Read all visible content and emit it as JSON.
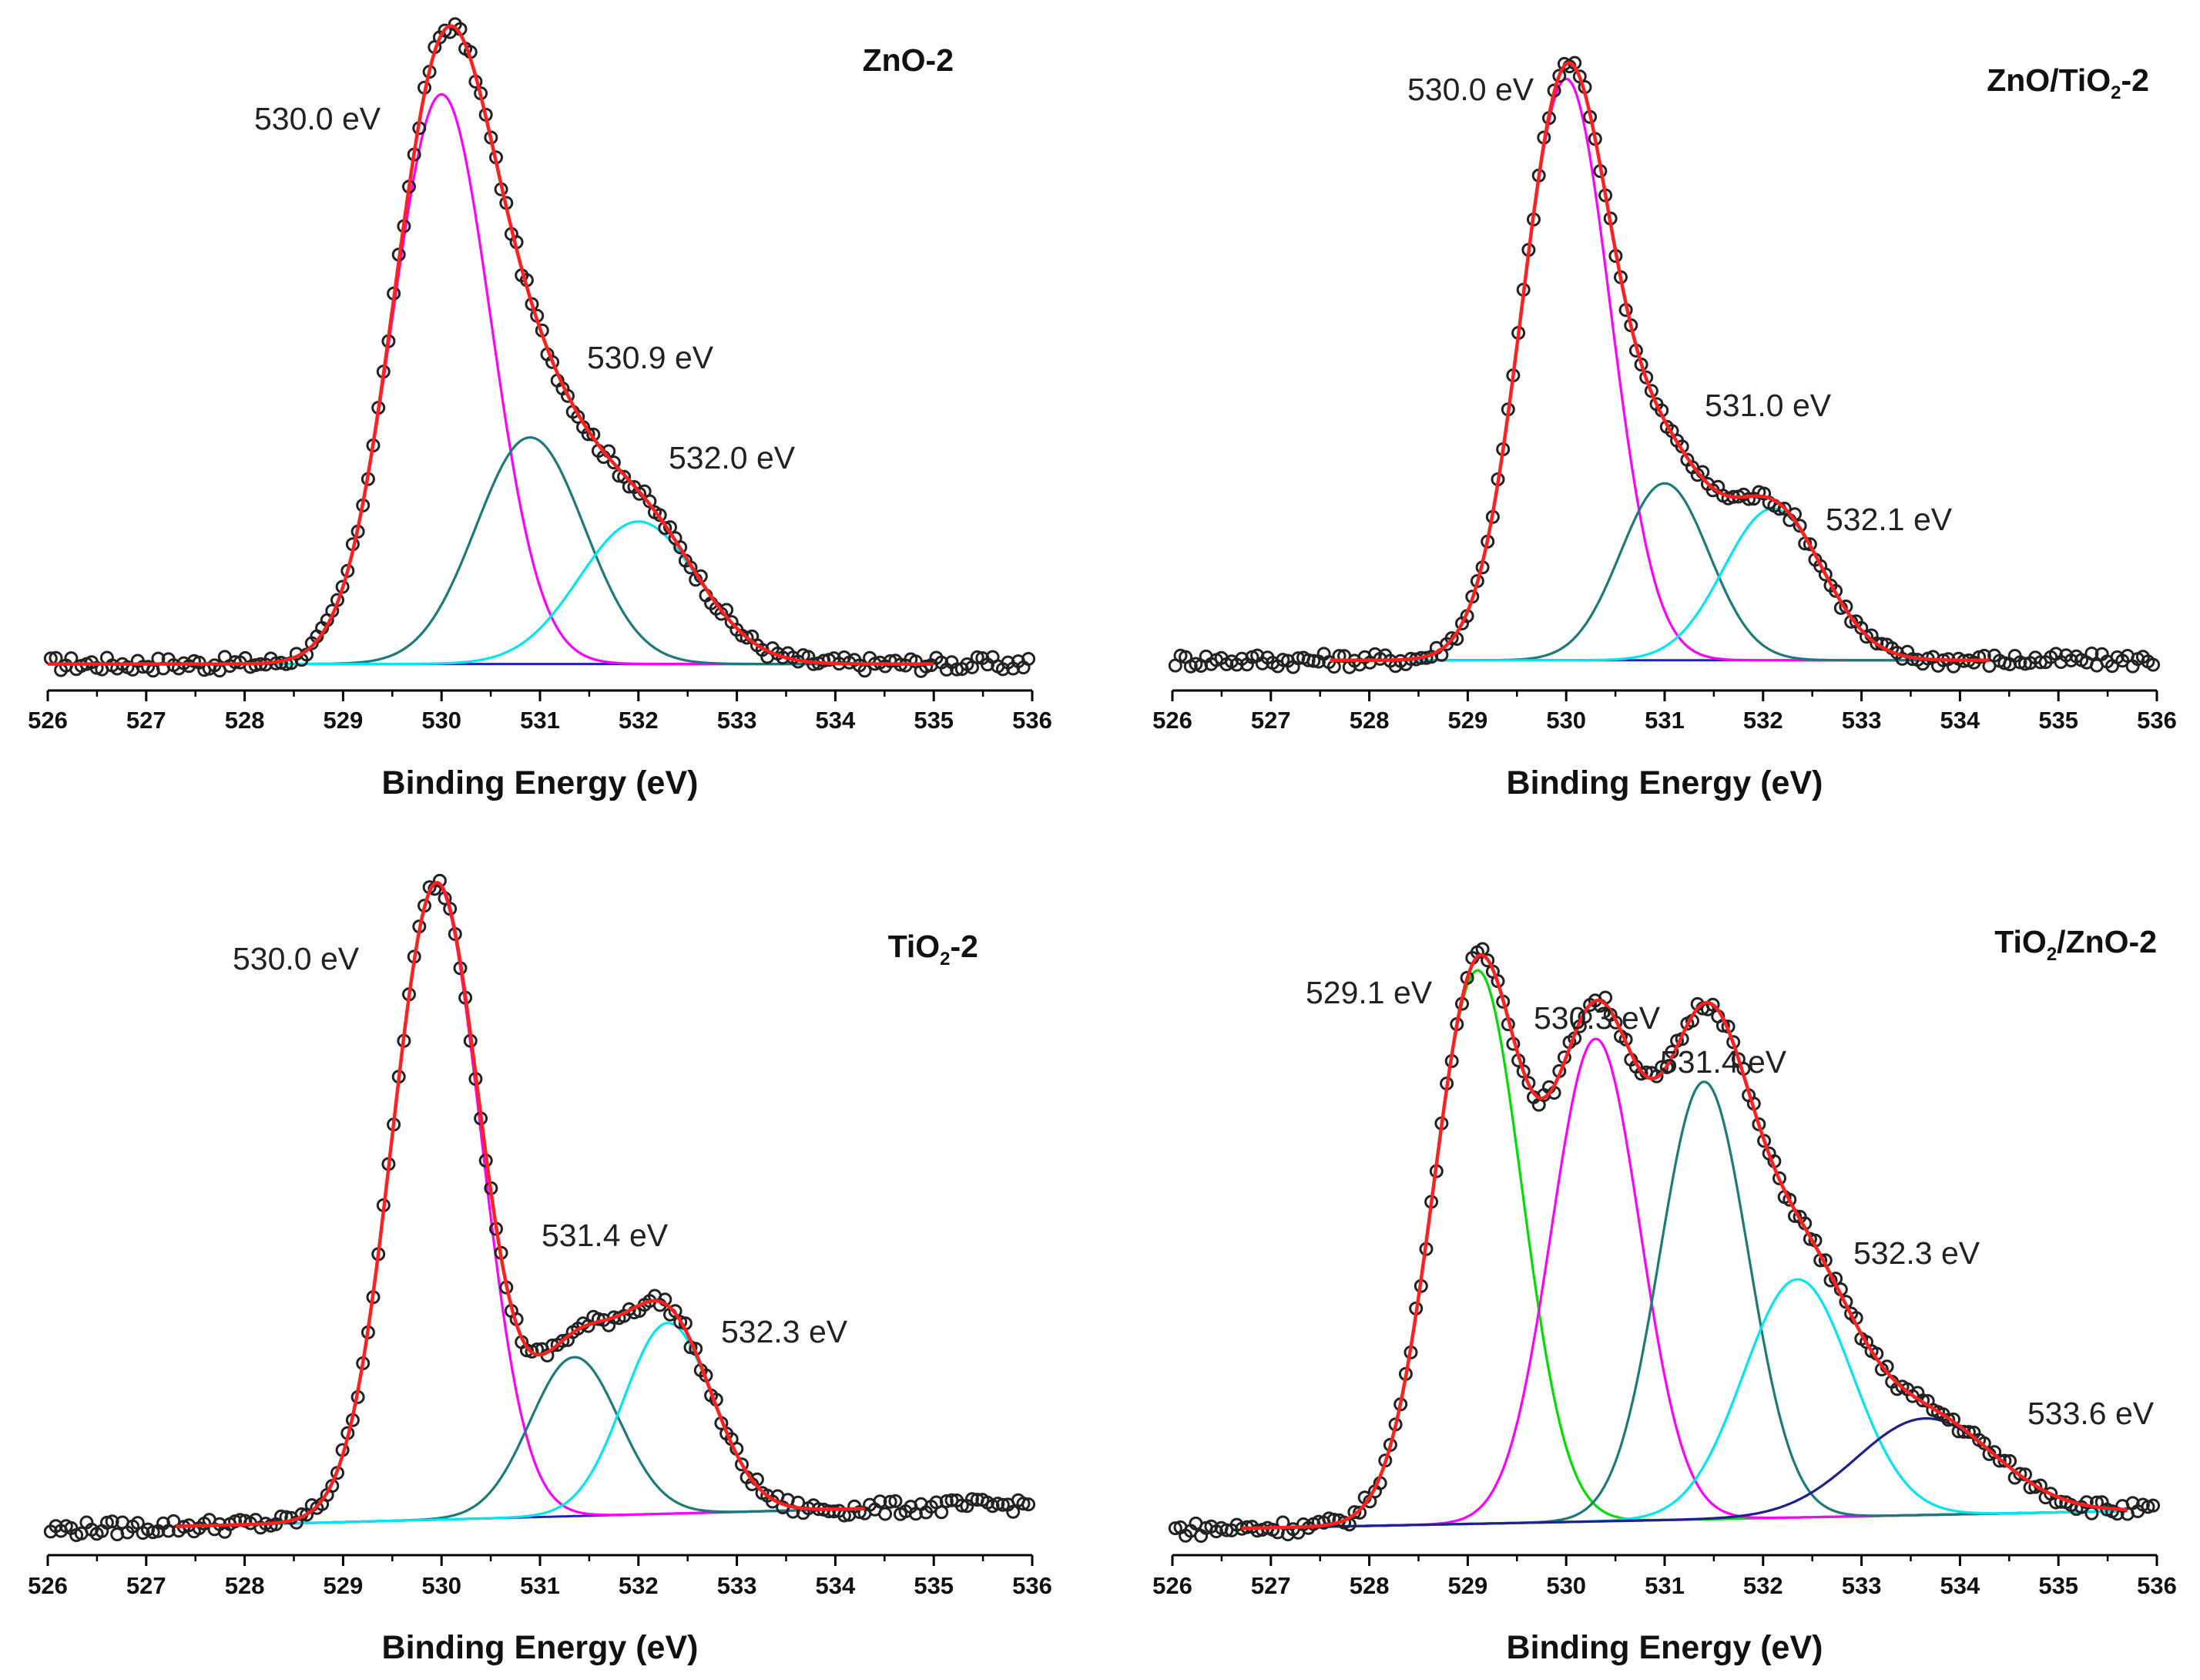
{
  "figure": {
    "description_type": "XPS O 1s spectra, 2x2 panels"
  },
  "chart_data": [
    {
      "type": "line",
      "title": "ZnO-2",
      "title_parts": [
        {
          "text": "ZnO-2",
          "sub": false
        }
      ],
      "xlabel": "Binding Energy (eV)",
      "ylabel": "",
      "xlim": [
        526,
        536
      ],
      "xticks": [
        526,
        527,
        528,
        529,
        530,
        531,
        532,
        533,
        534,
        535,
        536
      ],
      "fit_range": [
        526,
        535
      ],
      "baseline": [
        0.01,
        0.01
      ],
      "components": [
        {
          "center": 530.0,
          "height": 0.88,
          "width": 0.5,
          "color": "#ff00ff",
          "label": "530.0 eV"
        },
        {
          "center": 530.9,
          "height": 0.35,
          "width": 0.55,
          "color": "#1e7a7a",
          "label": "530.9 eV"
        },
        {
          "center": 532.0,
          "height": 0.22,
          "width": 0.6,
          "color": "#00e5ee",
          "label": "532.0 eV"
        }
      ],
      "envelope_color": "#ff2020",
      "baseline_color": "#2020c0",
      "series": [
        {
          "name": "experimental",
          "style": "open circles",
          "color": "#222222"
        },
        {
          "name": "fitted envelope",
          "style": "line",
          "color": "#ff2020"
        }
      ]
    },
    {
      "type": "line",
      "title": "ZnO/TiO2-2",
      "title_parts": [
        {
          "text": "ZnO/TiO",
          "sub": false
        },
        {
          "text": "2",
          "sub": true
        },
        {
          "text": "-2",
          "sub": false
        }
      ],
      "xlabel": "Binding Energy (eV)",
      "ylabel": "",
      "xlim": [
        526,
        536
      ],
      "xticks": [
        526,
        527,
        528,
        529,
        530,
        531,
        532,
        533,
        534,
        535,
        536
      ],
      "fit_range": [
        527.6,
        534.3
      ],
      "baseline": [
        0.01,
        0.01
      ],
      "components": [
        {
          "center": 530.0,
          "height": 0.92,
          "width": 0.45,
          "color": "#ff00ff",
          "label": "530.0 eV"
        },
        {
          "center": 531.0,
          "height": 0.28,
          "width": 0.45,
          "color": "#1e7a7a",
          "label": "531.0 eV"
        },
        {
          "center": 532.1,
          "height": 0.24,
          "width": 0.5,
          "color": "#00e5ee",
          "label": "532.1 eV"
        }
      ],
      "envelope_color": "#ff2020",
      "baseline_color": "#2020c0",
      "series": [
        {
          "name": "experimental",
          "style": "open circles",
          "color": "#222222"
        },
        {
          "name": "fitted envelope",
          "style": "line",
          "color": "#ff2020"
        }
      ]
    },
    {
      "type": "line",
      "title": "TiO2-2",
      "title_parts": [
        {
          "text": "TiO",
          "sub": false
        },
        {
          "text": "2",
          "sub": true
        },
        {
          "text": "-2",
          "sub": false
        }
      ],
      "xlabel": "Binding Energy (eV)",
      "ylabel": "",
      "xlim": [
        526,
        536
      ],
      "xticks": [
        526,
        527,
        528,
        529,
        530,
        531,
        532,
        533,
        534,
        535,
        536
      ],
      "fit_range": [
        527.3,
        534.3
      ],
      "baseline": [
        0.0,
        0.04
      ],
      "components": [
        {
          "center": 529.95,
          "height": 1.0,
          "width": 0.45,
          "color": "#ff00ff",
          "label": "530.0 eV"
        },
        {
          "center": 531.35,
          "height": 0.25,
          "width": 0.45,
          "color": "#1e7a7a",
          "label": "531.4 eV"
        },
        {
          "center": 532.3,
          "height": 0.3,
          "width": 0.45,
          "color": "#00e5ee",
          "label": "532.3 eV"
        }
      ],
      "envelope_color": "#ff2020",
      "baseline_color": "#2020c0",
      "series": [
        {
          "name": "experimental",
          "style": "open circles",
          "color": "#222222"
        },
        {
          "name": "fitted envelope",
          "style": "line",
          "color": "#ff2020"
        }
      ]
    },
    {
      "type": "line",
      "title": "TiO2/ZnO-2",
      "title_parts": [
        {
          "text": "TiO",
          "sub": false
        },
        {
          "text": "2",
          "sub": true
        },
        {
          "text": "/ZnO-2",
          "sub": false
        }
      ],
      "xlabel": "Binding Energy (eV)",
      "ylabel": "",
      "xlim": [
        526,
        536
      ],
      "xticks": [
        526,
        527,
        528,
        529,
        530,
        531,
        532,
        533,
        534,
        535,
        536
      ],
      "fit_range": [
        526.7,
        535.7
      ],
      "baseline": [
        0.0,
        0.03
      ],
      "components": [
        {
          "center": 529.1,
          "height": 0.86,
          "width": 0.45,
          "color": "#00dd00",
          "label": "529.1 eV"
        },
        {
          "center": 530.3,
          "height": 0.75,
          "width": 0.45,
          "color": "#ff00ff",
          "label": "530.3 eV"
        },
        {
          "center": 531.4,
          "height": 0.68,
          "width": 0.45,
          "color": "#1e7a7a",
          "label": "531.4 eV"
        },
        {
          "center": 532.35,
          "height": 0.37,
          "width": 0.55,
          "color": "#00e5ee",
          "label": "532.3 eV"
        },
        {
          "center": 533.65,
          "height": 0.15,
          "width": 0.7,
          "color": "#20208a",
          "label": "533.6 eV"
        }
      ],
      "envelope_color": "#ff2020",
      "baseline_color": "#20c0e0",
      "series": [
        {
          "name": "experimental",
          "style": "open circles",
          "color": "#222222"
        },
        {
          "name": "fitted envelope",
          "style": "line",
          "color": "#ff2020"
        }
      ]
    }
  ]
}
